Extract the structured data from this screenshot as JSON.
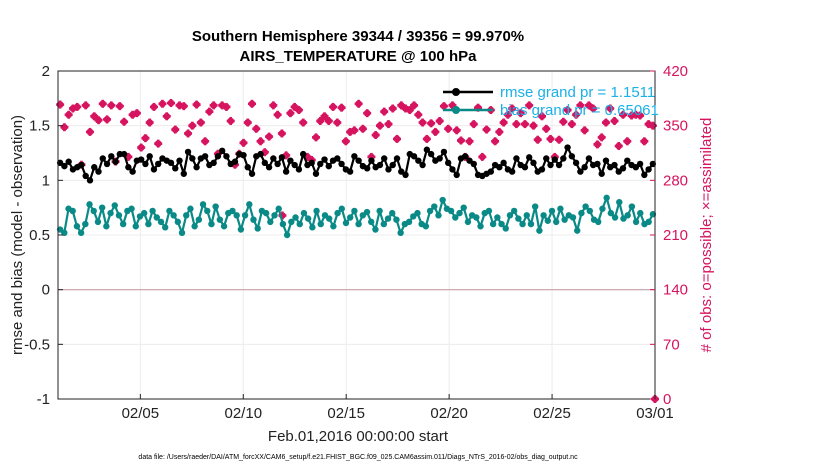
{
  "chart_data": {
    "type": "line",
    "title": "Southern Hemisphere 39344 / 39356 = 99.970%",
    "subtitle": "AIRS_TEMPERATURE @ 100 hPa",
    "xlabel": "Feb.01,2016 00:00:00 start",
    "ylabel": "rmse and bias (model - observation)",
    "ylabel_right": "# of obs: o=possible; ×=assimilated",
    "footer": "data file: /Users/raeder/DAI/ATM_forcXX/CAM6_setup/f.e21.FHIST_BGC.f09_025.CAM6assim.011/Diags_NTrS_2016-02/obs_diag_output.nc",
    "xlim": [
      1.0,
      30.0
    ],
    "ylim": [
      -1,
      2
    ],
    "ylim_right": [
      0,
      420
    ],
    "x_ticks": [
      {
        "value": 5,
        "label": "02/05"
      },
      {
        "value": 10,
        "label": "02/10"
      },
      {
        "value": 15,
        "label": "02/15"
      },
      {
        "value": 20,
        "label": "02/20"
      },
      {
        "value": 25,
        "label": "02/25"
      },
      {
        "value": 30,
        "label": "03/01"
      }
    ],
    "y_ticks": [
      "-1",
      "-0.5",
      "0",
      "0.5",
      "1",
      "1.5",
      "2"
    ],
    "y_ticks_right": [
      "0",
      "70",
      "140",
      "210",
      "280",
      "350",
      "420"
    ],
    "grid": true,
    "legend_position": "top-right",
    "zero_line": 0,
    "series": [
      {
        "name": "rmse grand pr = 1.1511",
        "color": "#000000",
        "axis": "left",
        "values": [
          1.16,
          1.13,
          1.17,
          1.1,
          1.12,
          1.14,
          1.04,
          1.0,
          1.12,
          1.08,
          1.2,
          1.15,
          1.22,
          1.17,
          1.24,
          1.24,
          1.12,
          1.08,
          1.18,
          1.19,
          1.15,
          1.22,
          1.1,
          1.15,
          1.2,
          1.18,
          1.16,
          1.11,
          1.18,
          1.06,
          1.26,
          1.2,
          1.12,
          1.2,
          1.22,
          1.14,
          1.16,
          1.22,
          1.27,
          1.22,
          1.15,
          1.17,
          1.24,
          1.23,
          1.12,
          1.06,
          1.22,
          1.24,
          1.16,
          1.12,
          1.2,
          1.15,
          1.21,
          1.08,
          1.18,
          1.14,
          1.1,
          1.24,
          1.14,
          1.16,
          1.06,
          1.15,
          1.19,
          1.13,
          1.18,
          1.2,
          1.15,
          1.1,
          1.08,
          1.22,
          1.18,
          1.13,
          1.11,
          1.18,
          1.12,
          1.14,
          1.2,
          1.1,
          1.14,
          1.2,
          1.08,
          1.05,
          1.24,
          1.22,
          1.18,
          1.14,
          1.28,
          1.24,
          1.18,
          1.2,
          1.26,
          1.16,
          1.1,
          1.05,
          1.2,
          1.22,
          1.18,
          1.15,
          1.05,
          1.04,
          1.06,
          1.08,
          1.14,
          1.12,
          1.16,
          1.1,
          1.08,
          1.2,
          1.14,
          1.12,
          1.21,
          1.16,
          1.08,
          1.1,
          1.2,
          1.14,
          1.19,
          1.14,
          1.2,
          1.3,
          1.22,
          1.16,
          1.08,
          1.12,
          1.2,
          1.14,
          1.15,
          1.06,
          1.18,
          1.12,
          1.14,
          1.08,
          1.11,
          1.18,
          1.14,
          1.12,
          1.15,
          1.05,
          1.1,
          1.15
        ]
      },
      {
        "name": "bias grand pr = 0.65061",
        "color": "#0a8a87",
        "axis": "left",
        "values": [
          0.55,
          0.52,
          0.74,
          0.72,
          0.58,
          0.52,
          0.6,
          0.78,
          0.72,
          0.62,
          0.75,
          0.58,
          0.7,
          0.77,
          0.68,
          0.6,
          0.72,
          0.74,
          0.58,
          0.67,
          0.7,
          0.6,
          0.72,
          0.66,
          0.62,
          0.57,
          0.72,
          0.68,
          0.62,
          0.52,
          0.68,
          0.74,
          0.58,
          0.64,
          0.78,
          0.72,
          0.6,
          0.76,
          0.64,
          0.58,
          0.7,
          0.72,
          0.68,
          0.55,
          0.68,
          0.78,
          0.64,
          0.56,
          0.72,
          0.7,
          0.62,
          0.68,
          0.74,
          0.6,
          0.5,
          0.62,
          0.66,
          0.6,
          0.7,
          0.65,
          0.57,
          0.72,
          0.6,
          0.68,
          0.65,
          0.58,
          0.7,
          0.74,
          0.61,
          0.66,
          0.72,
          0.6,
          0.68,
          0.71,
          0.62,
          0.55,
          0.72,
          0.6,
          0.65,
          0.7,
          0.64,
          0.52,
          0.6,
          0.62,
          0.67,
          0.7,
          0.6,
          0.58,
          0.72,
          0.76,
          0.68,
          0.82,
          0.74,
          0.72,
          0.66,
          0.7,
          0.75,
          0.62,
          0.68,
          0.66,
          0.58,
          0.7,
          0.72,
          0.6,
          0.66,
          0.6,
          0.56,
          0.68,
          0.72,
          0.65,
          0.6,
          0.68,
          0.6,
          0.76,
          0.54,
          0.68,
          0.63,
          0.72,
          0.62,
          0.74,
          0.64,
          0.68,
          0.66,
          0.54,
          0.7,
          0.76,
          0.72,
          0.64,
          0.62,
          0.74,
          0.84,
          0.7,
          0.66,
          0.8,
          0.65,
          0.68,
          0.76,
          0.62,
          0.7,
          0.6,
          0.62,
          0.69
        ]
      }
    ],
    "obs_possible": {
      "color": "#d6145f",
      "axis": "right",
      "values": [
        377,
        348,
        364,
        372,
        374,
        300,
        376,
        342,
        362,
        357,
        378,
        358,
        376,
        304,
        375,
        355,
        310,
        364,
        366,
        322,
        334,
        354,
        374,
        327,
        378,
        362,
        379,
        345,
        376,
        375,
        340,
        350,
        377,
        354,
        330,
        368,
        376,
        314,
        376,
        374,
        356,
        300,
        314,
        328,
        354,
        378,
        346,
        330,
        316,
        336,
        376,
        364,
        340,
        312,
        366,
        374,
        370,
        354,
        310,
        306,
        335,
        356,
        362,
        356,
        374,
        354,
        373,
        330,
        342,
        344,
        378,
        346,
        366,
        310,
        338,
        350,
        368,
        352,
        372,
        333,
        376,
        372,
        370,
        376,
        364,
        354,
        333,
        353,
        342,
        356,
        375,
        346,
        376,
        344,
        331,
        310,
        330,
        352,
        373,
        310,
        345,
        370,
        330,
        342,
        354,
        364,
        372,
        352,
        366,
        352,
        376,
        350,
        332,
        362,
        346,
        333,
        310,
        332,
        355,
        370,
        352,
        364,
        376,
        344,
        376,
        372,
        326,
        335,
        354,
        372,
        356,
        324,
        364,
        330,
        363,
        364,
        363,
        330,
        352,
        350
      ]
    },
    "obs_assimilated": {
      "color": "#d6145f",
      "axis": "right",
      "values": [
        377,
        348,
        364,
        372,
        374,
        300,
        376,
        342,
        362,
        357,
        378,
        358,
        376,
        304,
        375,
        355,
        310,
        364,
        366,
        322,
        334,
        354,
        374,
        327,
        378,
        362,
        379,
        345,
        376,
        375,
        340,
        350,
        377,
        354,
        330,
        368,
        376,
        314,
        376,
        374,
        356,
        300,
        314,
        328,
        354,
        378,
        346,
        330,
        316,
        336,
        376,
        364,
        340,
        312,
        366,
        374,
        370,
        354,
        310,
        306,
        335,
        356,
        362,
        356,
        374,
        354,
        373,
        330,
        342,
        344,
        378,
        346,
        366,
        310,
        338,
        350,
        368,
        352,
        372,
        333,
        376,
        372,
        370,
        376,
        364,
        354,
        333,
        353,
        342,
        356,
        375,
        346,
        376,
        344,
        331,
        310,
        330,
        352,
        373,
        310,
        345,
        370,
        330,
        342,
        354,
        364,
        372,
        352,
        366,
        352,
        376,
        350,
        332,
        362,
        346,
        333,
        310,
        332,
        355,
        370,
        352,
        364,
        376,
        344,
        376,
        372,
        326,
        335,
        354,
        372,
        356,
        324,
        364,
        330,
        363,
        364,
        363,
        330,
        352,
        350
      ],
      "outliers": [
        {
          "x": 11.9,
          "y": 235
        },
        {
          "x": 30.0,
          "y": 0
        }
      ]
    }
  }
}
